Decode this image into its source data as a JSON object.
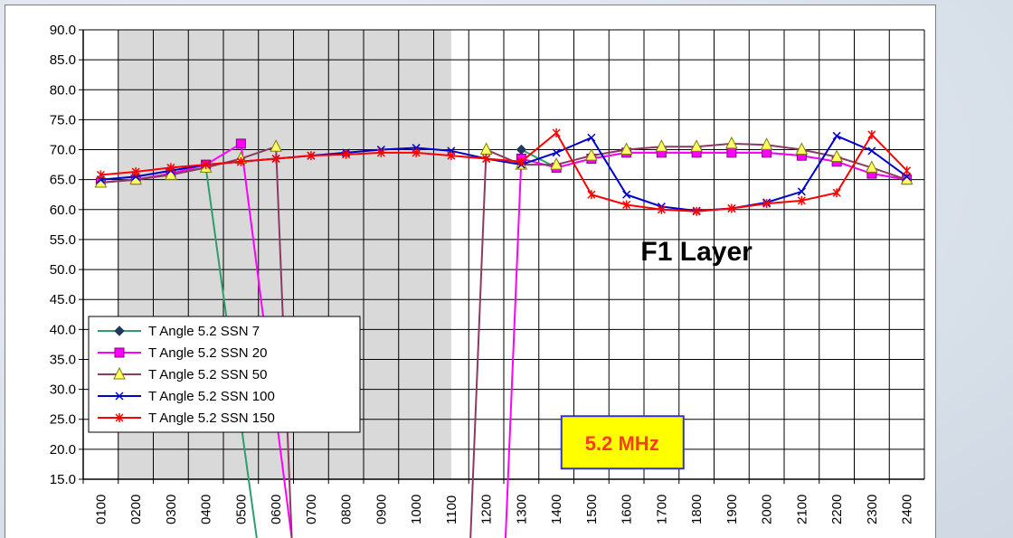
{
  "chart_data": {
    "type": "line",
    "title": "",
    "xlabel": "",
    "ylabel": "",
    "categories": [
      "0100",
      "0200",
      "0300",
      "0400",
      "0500",
      "0600",
      "0700",
      "0800",
      "0900",
      "1000",
      "1100",
      "1200",
      "1300",
      "1400",
      "1500",
      "1600",
      "1700",
      "1800",
      "1900",
      "2000",
      "2100",
      "2200",
      "2300",
      "2400"
    ],
    "ylim": [
      15.0,
      90.0
    ],
    "yticks": [
      "15.0",
      "20.0",
      "25.0",
      "30.0",
      "35.0",
      "40.0",
      "45.0",
      "50.0",
      "55.0",
      "60.0",
      "65.0",
      "70.0",
      "75.0",
      "80.0",
      "85.0",
      "90.0"
    ],
    "grid": true,
    "shaded_hours": [
      "0200",
      "1100"
    ],
    "legend_position": "bottom-left",
    "series": [
      {
        "name": "T Angle 5.2 SSN 7",
        "color": "#2e9e6e",
        "marker": "diamond",
        "values": [
          64.5,
          65.0,
          66.0,
          67.0,
          null,
          null,
          null,
          null,
          null,
          null,
          null,
          null,
          70.0,
          67.0,
          68.5,
          69.5,
          69.5,
          69.5,
          69.5,
          69.5,
          69.0,
          68.0,
          66.0,
          65.0
        ]
      },
      {
        "name": "T Angle 5.2 SSN 20",
        "color": "#ff00ff",
        "marker": "square",
        "values": [
          64.5,
          65.0,
          66.0,
          67.5,
          71.0,
          null,
          null,
          null,
          null,
          null,
          null,
          null,
          68.5,
          67.0,
          68.5,
          69.5,
          69.5,
          69.5,
          69.5,
          69.5,
          69.0,
          68.0,
          66.0,
          65.0
        ]
      },
      {
        "name": "T Angle 5.2 SSN 50",
        "color": "#8b3a62",
        "marker": "triangle",
        "values": [
          64.5,
          65.0,
          65.8,
          67.0,
          68.5,
          70.5,
          null,
          null,
          null,
          null,
          null,
          70.0,
          67.5,
          67.5,
          69.0,
          70.0,
          70.5,
          70.5,
          71.0,
          70.8,
          70.0,
          68.8,
          67.0,
          65.0
        ]
      },
      {
        "name": "T Angle 5.2 SSN 100",
        "color": "#0000cc",
        "marker": "x",
        "values": [
          65.0,
          65.5,
          66.5,
          67.5,
          68.0,
          68.5,
          69.0,
          69.5,
          70.0,
          70.3,
          69.8,
          68.5,
          67.5,
          69.5,
          72.0,
          62.5,
          60.5,
          59.8,
          60.2,
          61.2,
          63.0,
          72.3,
          69.8,
          65.5
        ]
      },
      {
        "name": "T Angle 5.2 SSN 150",
        "color": "#ff0000",
        "marker": "star",
        "values": [
          65.8,
          66.3,
          67.0,
          67.5,
          68.0,
          68.5,
          69.0,
          69.2,
          69.5,
          69.5,
          69.0,
          68.5,
          68.0,
          72.8,
          62.5,
          60.8,
          60.0,
          59.7,
          60.2,
          61.0,
          61.5,
          62.8,
          72.5,
          66.5
        ]
      }
    ],
    "dropouts": [
      {
        "series": "T Angle 5.2 SSN 7",
        "from": "0400",
        "to_between": [
          "0500",
          "0600"
        ]
      },
      {
        "series": "T Angle 5.2 SSN 20",
        "from": "0500",
        "to_between": [
          "0600",
          "0700"
        ]
      },
      {
        "series": "T Angle 5.2 SSN 20",
        "to": "1300",
        "from_between": [
          "1200",
          "1300"
        ]
      },
      {
        "series": "T Angle 5.2 SSN 50",
        "from": "0600",
        "to_between": [
          "0600",
          "0700"
        ]
      },
      {
        "series": "T Angle 5.2 SSN 50",
        "to": "1200",
        "from_between": [
          "1100",
          "1200"
        ]
      }
    ],
    "annotations": [
      {
        "text": "F1 Layer",
        "at": "1800",
        "y": 53.0
      },
      {
        "text": "5.2 MHz",
        "at": "1350",
        "y": 21.0
      }
    ]
  }
}
